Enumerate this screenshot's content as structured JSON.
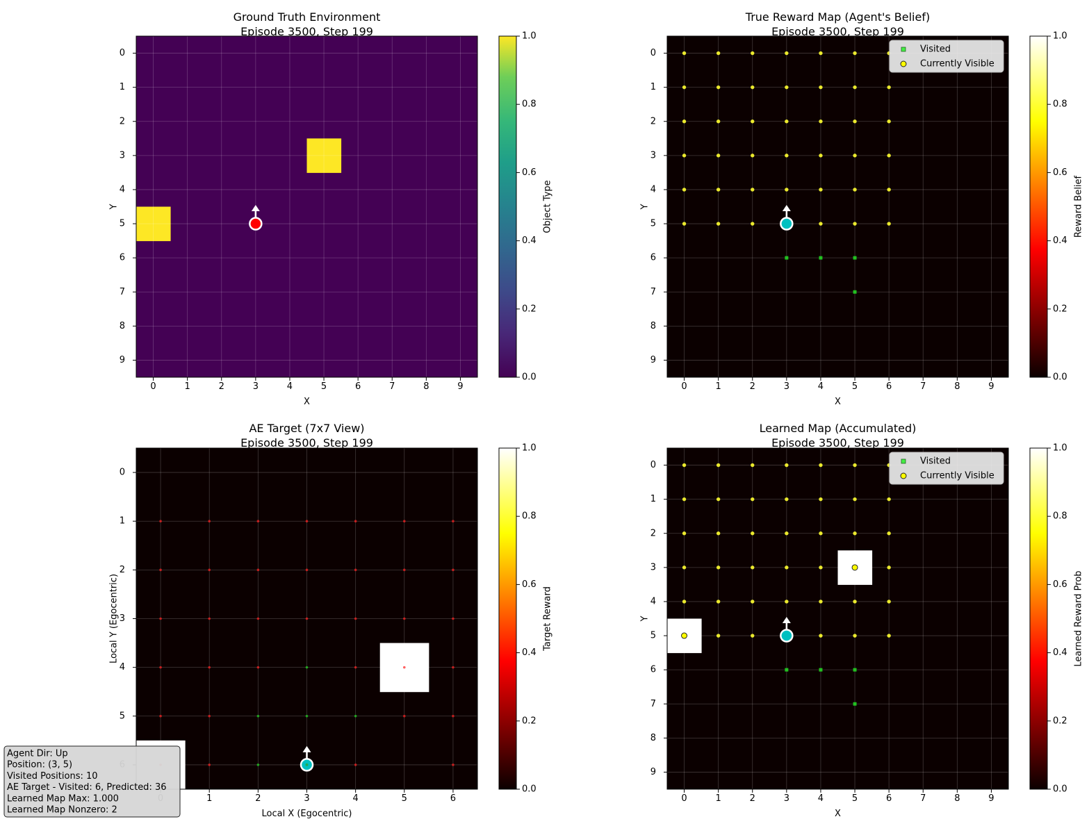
{
  "chart_data": [
    {
      "type": "heatmap",
      "title": "Ground Truth Environment",
      "subtitle": "Episode 3500, Step 199",
      "xlabel": "X",
      "ylabel": "Y",
      "colormap": "viridis",
      "grid_size": 10,
      "x_ticks": [
        "0",
        "1",
        "2",
        "3",
        "4",
        "5",
        "6",
        "7",
        "8",
        "9"
      ],
      "y_ticks": [
        "0",
        "1",
        "2",
        "3",
        "4",
        "5",
        "6",
        "7",
        "8",
        "9"
      ],
      "cells": [
        {
          "x": 5,
          "y": 3,
          "value": 1.0
        },
        {
          "x": 0,
          "y": 5,
          "value": 1.0
        }
      ],
      "background_value": 0.0,
      "agent": {
        "x": 3,
        "y": 5,
        "color": "#ff0000",
        "direction": "up"
      },
      "colorbar": {
        "label": "Object Type",
        "range": [
          0,
          1
        ],
        "ticks": [
          "0.0",
          "0.2",
          "0.4",
          "0.6",
          "0.8",
          "1.0"
        ]
      }
    },
    {
      "type": "heatmap",
      "title": "True Reward Map (Agent's Belief)",
      "subtitle": "Episode 3500, Step 199",
      "xlabel": "X",
      "ylabel": "Y",
      "colormap": "hot",
      "grid_size": 10,
      "x_ticks": [
        "0",
        "1",
        "2",
        "3",
        "4",
        "5",
        "6",
        "7",
        "8",
        "9"
      ],
      "y_ticks": [
        "0",
        "1",
        "2",
        "3",
        "4",
        "5",
        "6",
        "7",
        "8",
        "9"
      ],
      "cells": [],
      "background_value": 0.0,
      "visible_points": [
        [
          0,
          0
        ],
        [
          1,
          0
        ],
        [
          2,
          0
        ],
        [
          3,
          0
        ],
        [
          4,
          0
        ],
        [
          5,
          0
        ],
        [
          6,
          0
        ],
        [
          0,
          1
        ],
        [
          1,
          1
        ],
        [
          2,
          1
        ],
        [
          3,
          1
        ],
        [
          4,
          1
        ],
        [
          5,
          1
        ],
        [
          6,
          1
        ],
        [
          0,
          2
        ],
        [
          1,
          2
        ],
        [
          2,
          2
        ],
        [
          3,
          2
        ],
        [
          4,
          2
        ],
        [
          5,
          2
        ],
        [
          6,
          2
        ],
        [
          0,
          3
        ],
        [
          1,
          3
        ],
        [
          2,
          3
        ],
        [
          3,
          3
        ],
        [
          4,
          3
        ],
        [
          5,
          3
        ],
        [
          6,
          3
        ],
        [
          0,
          4
        ],
        [
          1,
          4
        ],
        [
          2,
          4
        ],
        [
          3,
          4
        ],
        [
          4,
          4
        ],
        [
          5,
          4
        ],
        [
          6,
          4
        ],
        [
          0,
          5
        ],
        [
          1,
          5
        ],
        [
          2,
          5
        ],
        [
          3,
          5
        ],
        [
          4,
          5
        ],
        [
          5,
          5
        ],
        [
          6,
          5
        ]
      ],
      "visited_points": [
        [
          3,
          6
        ],
        [
          4,
          6
        ],
        [
          5,
          6
        ],
        [
          5,
          7
        ]
      ],
      "agent": {
        "x": 3,
        "y": 5,
        "color": "#00c0c0",
        "direction": "up"
      },
      "legend": {
        "placement": "top-right",
        "entries": [
          "Visited",
          "Currently Visible"
        ]
      },
      "colorbar": {
        "label": "Reward Belief",
        "range": [
          0,
          1
        ],
        "ticks": [
          "0.0",
          "0.2",
          "0.4",
          "0.6",
          "0.8",
          "1.0"
        ]
      }
    },
    {
      "type": "heatmap",
      "title": "AE Target (7x7 View)",
      "subtitle": "Episode 3500, Step 199",
      "xlabel": "Local X (Egocentric)",
      "ylabel": "Local Y (Egocentric)",
      "colormap": "hot",
      "grid_size": 7,
      "x_ticks": [
        "0",
        "1",
        "2",
        "3",
        "4",
        "5",
        "6"
      ],
      "y_ticks": [
        "0",
        "1",
        "2",
        "3",
        "4",
        "5",
        "6"
      ],
      "cells": [
        {
          "x": 5,
          "y": 4,
          "value": 1.0
        },
        {
          "x": 0,
          "y": 6,
          "value": 1.0
        }
      ],
      "background_value": 0.0,
      "predicted_points": [
        [
          0,
          1
        ],
        [
          1,
          1
        ],
        [
          2,
          1
        ],
        [
          3,
          1
        ],
        [
          4,
          1
        ],
        [
          5,
          1
        ],
        [
          6,
          1
        ],
        [
          0,
          2
        ],
        [
          1,
          2
        ],
        [
          2,
          2
        ],
        [
          3,
          2
        ],
        [
          4,
          2
        ],
        [
          5,
          2
        ],
        [
          6,
          2
        ],
        [
          0,
          3
        ],
        [
          1,
          3
        ],
        [
          2,
          3
        ],
        [
          3,
          3
        ],
        [
          4,
          3
        ],
        [
          5,
          3
        ],
        [
          6,
          3
        ],
        [
          0,
          4
        ],
        [
          1,
          4
        ],
        [
          2,
          4
        ],
        [
          4,
          4
        ],
        [
          5,
          4
        ],
        [
          6,
          4
        ],
        [
          0,
          5
        ],
        [
          1,
          5
        ],
        [
          5,
          5
        ],
        [
          6,
          5
        ],
        [
          0,
          6
        ],
        [
          1,
          6
        ],
        [
          3,
          6
        ],
        [
          4,
          6
        ],
        [
          6,
          6
        ]
      ],
      "visited_points": [
        [
          3,
          4
        ],
        [
          2,
          5
        ],
        [
          3,
          5
        ],
        [
          4,
          5
        ],
        [
          2,
          6
        ],
        [
          3,
          6
        ]
      ],
      "agent": {
        "x": 3,
        "y": 6,
        "color": "#00c0c0",
        "direction": "up"
      },
      "colorbar": {
        "label": "Target Reward",
        "range": [
          0,
          1
        ],
        "ticks": [
          "0.0",
          "0.2",
          "0.4",
          "0.6",
          "0.8",
          "1.0"
        ]
      }
    },
    {
      "type": "heatmap",
      "title": "Learned Map (Accumulated)",
      "subtitle": "Episode 3500, Step 199",
      "xlabel": "X",
      "ylabel": "Y",
      "colormap": "hot",
      "grid_size": 10,
      "x_ticks": [
        "0",
        "1",
        "2",
        "3",
        "4",
        "5",
        "6",
        "7",
        "8",
        "9"
      ],
      "y_ticks": [
        "0",
        "1",
        "2",
        "3",
        "4",
        "5",
        "6",
        "7",
        "8",
        "9"
      ],
      "cells": [
        {
          "x": 5,
          "y": 3,
          "value": 1.0
        },
        {
          "x": 0,
          "y": 5,
          "value": 1.0
        }
      ],
      "background_value": 0.0,
      "visible_points": [
        [
          0,
          0
        ],
        [
          1,
          0
        ],
        [
          2,
          0
        ],
        [
          3,
          0
        ],
        [
          4,
          0
        ],
        [
          5,
          0
        ],
        [
          6,
          0
        ],
        [
          0,
          1
        ],
        [
          1,
          1
        ],
        [
          2,
          1
        ],
        [
          3,
          1
        ],
        [
          4,
          1
        ],
        [
          5,
          1
        ],
        [
          6,
          1
        ],
        [
          0,
          2
        ],
        [
          1,
          2
        ],
        [
          2,
          2
        ],
        [
          3,
          2
        ],
        [
          4,
          2
        ],
        [
          5,
          2
        ],
        [
          6,
          2
        ],
        [
          0,
          3
        ],
        [
          1,
          3
        ],
        [
          2,
          3
        ],
        [
          3,
          3
        ],
        [
          4,
          3
        ],
        [
          5,
          3
        ],
        [
          6,
          3
        ],
        [
          0,
          4
        ],
        [
          1,
          4
        ],
        [
          2,
          4
        ],
        [
          3,
          4
        ],
        [
          4,
          4
        ],
        [
          5,
          4
        ],
        [
          6,
          4
        ],
        [
          0,
          5
        ],
        [
          1,
          5
        ],
        [
          2,
          5
        ],
        [
          3,
          5
        ],
        [
          4,
          5
        ],
        [
          5,
          5
        ],
        [
          6,
          5
        ]
      ],
      "large_visible_points": [
        [
          5,
          3
        ],
        [
          0,
          5
        ]
      ],
      "visited_points": [
        [
          3,
          6
        ],
        [
          4,
          6
        ],
        [
          5,
          6
        ],
        [
          5,
          7
        ]
      ],
      "agent": {
        "x": 3,
        "y": 5,
        "color": "#00c0c0",
        "direction": "up"
      },
      "legend": {
        "placement": "top-right",
        "entries": [
          "Visited",
          "Currently Visible"
        ]
      },
      "colorbar": {
        "label": "Learned Reward Prob",
        "range": [
          0,
          1
        ],
        "ticks": [
          "0.0",
          "0.2",
          "0.4",
          "0.6",
          "0.8",
          "1.0"
        ]
      }
    }
  ],
  "info_box": {
    "lines": [
      "Agent Dir: Up",
      "Position: (3, 5)",
      "Visited Positions: 10",
      "AE Target - Visited: 6, Predicted: 36",
      "Learned Map Max: 1.000",
      "Learned Map Nonzero: 2"
    ]
  }
}
